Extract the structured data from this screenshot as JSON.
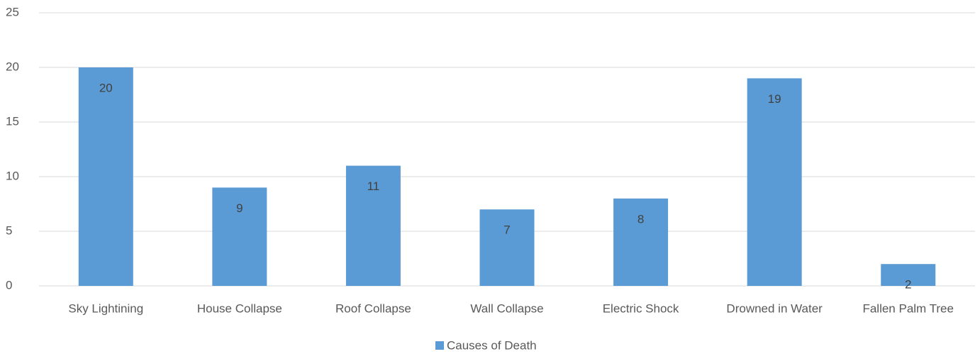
{
  "chart_data": {
    "type": "bar",
    "categories": [
      "Sky Lightining",
      "House Collapse",
      "Roof Collapse",
      "Wall Collapse",
      "Electric Shock",
      "Drowned in Water",
      "Fallen Palm Tree"
    ],
    "series": [
      {
        "name": "Causes of Death",
        "color": "#5b9bd5",
        "values": [
          20,
          9,
          11,
          7,
          8,
          19,
          2
        ]
      }
    ],
    "ylim": [
      0,
      25
    ],
    "yticks": [
      0,
      5,
      10,
      15,
      20,
      25
    ],
    "grid": true,
    "legend": "bottom",
    "data_labels": true
  }
}
